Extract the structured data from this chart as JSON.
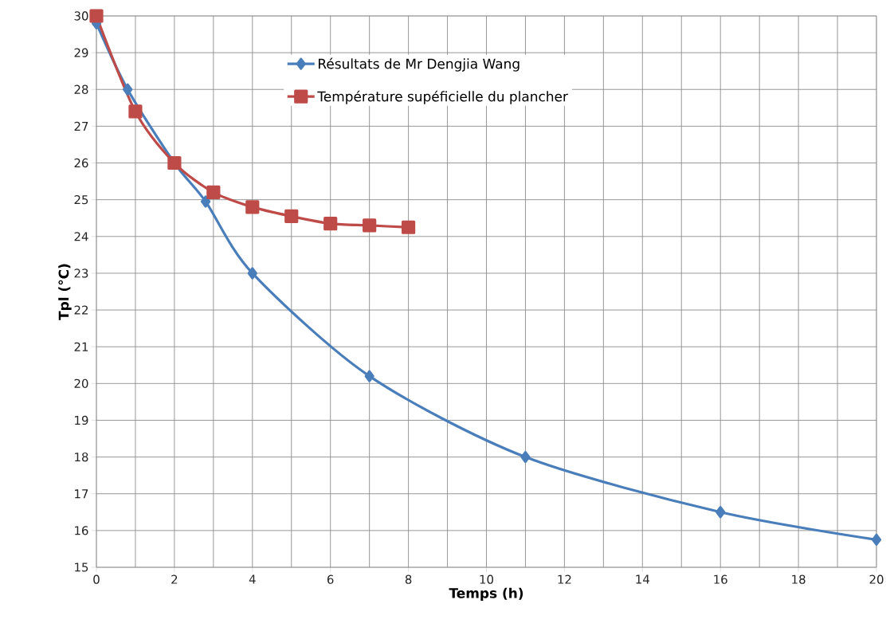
{
  "chart_data": {
    "type": "line",
    "xlabel": "Temps (h)",
    "ylabel": "Tpl (°C)",
    "series": [
      {
        "name": "Résultats de Mr Dengjia Wang",
        "color": "#4a7ebb",
        "marker": "diamond",
        "x": [
          0,
          0.8,
          2,
          2.8,
          4,
          7,
          11,
          16,
          20
        ],
        "values": [
          29.8,
          28,
          26,
          24.95,
          23,
          20.2,
          18,
          16.5,
          15.75
        ]
      },
      {
        "name": "Température supéficielle du plancher",
        "color": "#be4b48",
        "marker": "square",
        "x": [
          0,
          1,
          2,
          3,
          4,
          5,
          6,
          7,
          8
        ],
        "values": [
          30,
          27.4,
          26,
          25.2,
          24.8,
          24.55,
          24.35,
          24.3,
          24.25
        ]
      }
    ],
    "xlim": [
      0,
      20
    ],
    "xticks": [
      0,
      2,
      4,
      6,
      8,
      10,
      12,
      14,
      16,
      18,
      20
    ],
    "ylim": [
      15,
      30
    ],
    "yticks": [
      15,
      16,
      17,
      18,
      19,
      20,
      21,
      22,
      23,
      24,
      25,
      26,
      27,
      28,
      29,
      30
    ],
    "grid": true,
    "legend": "top",
    "line_style": "solid"
  }
}
